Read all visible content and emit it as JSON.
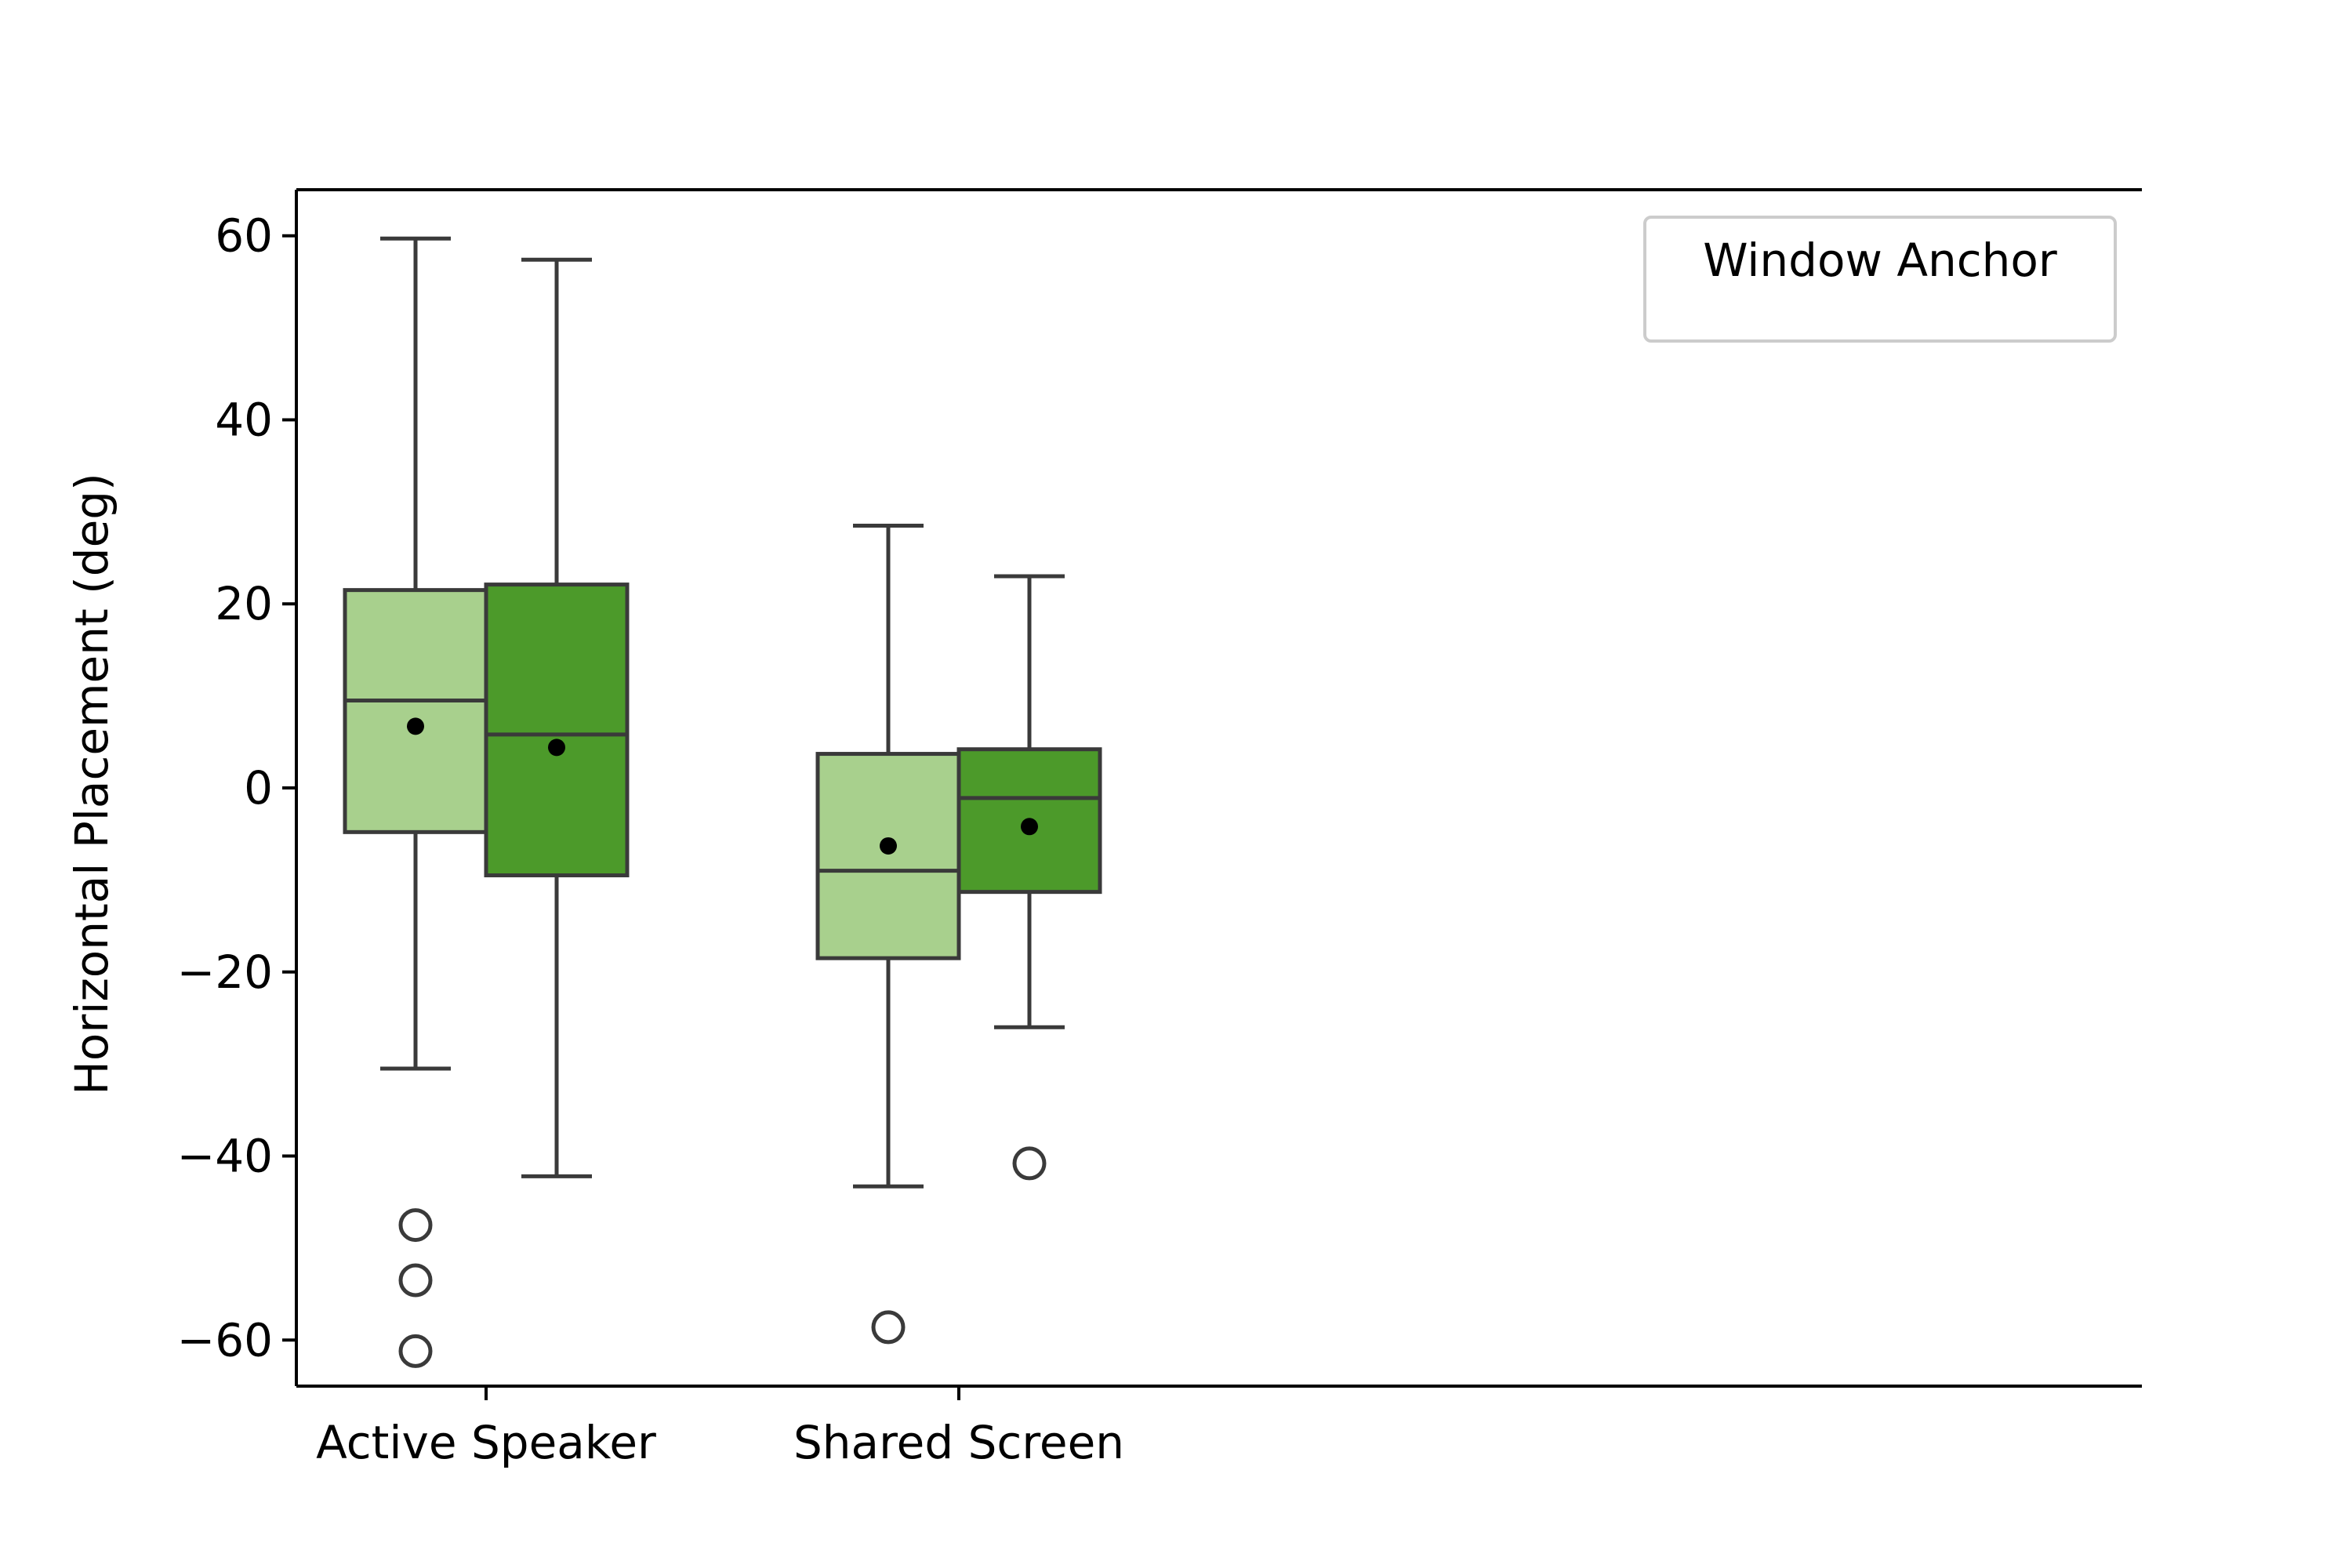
{
  "chart_data": {
    "type": "box",
    "categories": [
      "Active Speaker",
      "Shared Screen"
    ],
    "ylabel": "Horizontal Placement (deg)",
    "xlabel": "",
    "ylim": [
      -65,
      65
    ],
    "yticks": [
      60,
      40,
      20,
      0,
      -20,
      -40,
      -60
    ],
    "ytick_labels": [
      "60",
      "40",
      "20",
      "0",
      "−20",
      "−40",
      "−60"
    ],
    "grid": false,
    "legend": {
      "title": "Window Anchor",
      "placement": "top-right",
      "entries": []
    },
    "colors": {
      "light": "#a8d08d",
      "dark": "#4c9a2a",
      "line": "#3a3a3a",
      "mean": "#000000"
    },
    "boxes": [
      {
        "category": "Active Speaker",
        "color": "light",
        "whisker_low": -30.5,
        "q1": -4.8,
        "median": 9.5,
        "q3": 21.5,
        "whisker_high": 59.7,
        "mean": 6.7,
        "outliers": [
          -47.5,
          -53.5,
          -61.2
        ]
      },
      {
        "category": "Active Speaker",
        "color": "dark",
        "whisker_low": -42.2,
        "q1": -9.5,
        "median": 5.8,
        "q3": 22.1,
        "whisker_high": 57.4,
        "mean": 4.4,
        "outliers": []
      },
      {
        "category": "Shared Screen",
        "color": "light",
        "whisker_low": -43.3,
        "q1": -18.5,
        "median": -9.0,
        "q3": 3.7,
        "whisker_high": 28.5,
        "mean": -6.3,
        "outliers": [
          -58.6
        ]
      },
      {
        "category": "Shared Screen",
        "color": "dark",
        "whisker_low": -26.0,
        "q1": -11.3,
        "median": -1.1,
        "q3": 4.2,
        "whisker_high": 23.0,
        "mean": -4.2,
        "outliers": [
          -40.8
        ]
      }
    ]
  }
}
